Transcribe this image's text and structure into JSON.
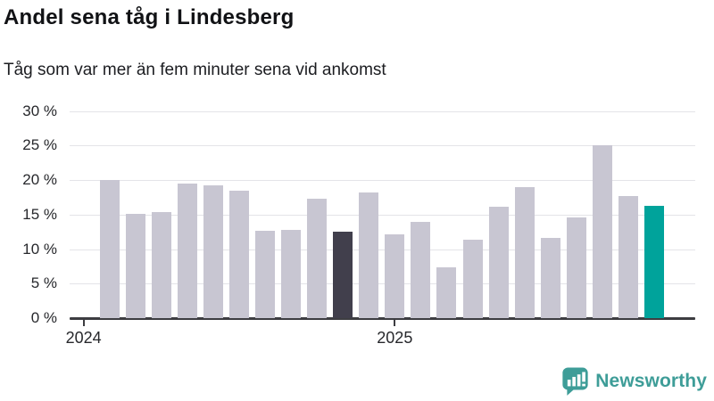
{
  "title": "Andel sena tåg i Lindesberg",
  "subtitle": "Tåg som var mer än fem minuter sena vid ankomst",
  "footer": {
    "brand": "Newsworthy",
    "icon": "newsworthy-chart-bubble-icon"
  },
  "colors": {
    "bar_default": "#c8c6d2",
    "bar_highlight_dark": "#413f4c",
    "bar_highlight_teal": "#00a39b",
    "axis": "#3d3d41",
    "gridline": "#e4e4e8",
    "brand_teal": "#3e9d98"
  },
  "chart_data": {
    "type": "bar",
    "title": "Andel sena tåg i Lindesberg",
    "subtitle": "Tåg som var mer än fem minuter sena vid ankomst",
    "values": [
      20.0,
      15.1,
      15.4,
      19.5,
      19.3,
      18.5,
      12.7,
      12.8,
      17.3,
      12.5,
      18.2,
      12.2,
      14.0,
      7.4,
      11.4,
      16.1,
      19.0,
      11.6,
      14.6,
      25.1,
      17.7,
      16.3
    ],
    "highlight_dark_index": 9,
    "highlight_teal_index": 21,
    "unit": "%",
    "ylim": [
      0,
      30
    ],
    "y_ticks": [
      {
        "value": 0,
        "label": "0 %"
      },
      {
        "value": 5,
        "label": "5 %"
      },
      {
        "value": 10,
        "label": "10 %"
      },
      {
        "value": 15,
        "label": "15 %"
      },
      {
        "value": 20,
        "label": "20 %"
      },
      {
        "value": 25,
        "label": "25 %"
      },
      {
        "value": 30,
        "label": "30 %"
      }
    ],
    "x_ticks": [
      {
        "label": "2024",
        "slot": 0
      },
      {
        "label": "2025",
        "slot": 12
      }
    ],
    "grid": "horizontal",
    "legend": "none"
  }
}
